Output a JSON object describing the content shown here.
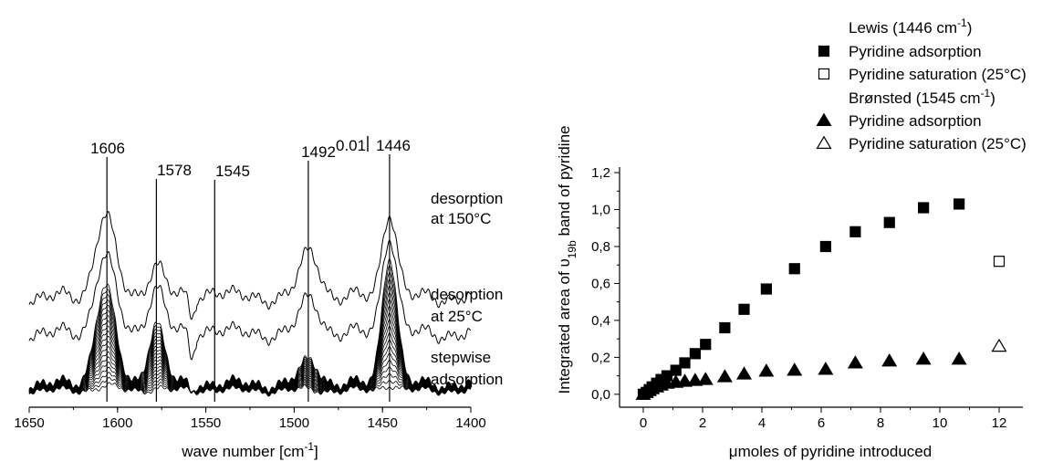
{
  "chart_data": [
    {
      "type": "line",
      "xlabel": "wave number [cm",
      "xlabel_sup": "-1",
      "xlabel_end": "]",
      "xlim": [
        1650,
        1400
      ],
      "x_ticks": [
        1650,
        1600,
        1550,
        1500,
        1450,
        1400
      ],
      "y_axis_shown": false,
      "scale_bar_label": "0.01",
      "peak_labels": [
        {
          "label": "1606",
          "x": 1606
        },
        {
          "label": "1578",
          "x": 1578
        },
        {
          "label": "1545",
          "x": 1545
        },
        {
          "label": "1492",
          "x": 1492
        },
        {
          "label": "1446",
          "x": 1446
        }
      ],
      "spectrum_labels": [
        {
          "lines": [
            "desorption",
            "at 150°C"
          ]
        },
        {
          "lines": [
            "desorption",
            "at 25°C"
          ]
        },
        {
          "lines": [
            "stepwise",
            "adsorption"
          ]
        }
      ],
      "series": [
        {
          "role": "desorption_150",
          "offset": 0.62,
          "amplitude": 1.0
        },
        {
          "role": "desorption_25",
          "offset": 0.38,
          "amplitude": 0.95
        },
        {
          "role": "stepwise_adsorption",
          "offset": 0.0,
          "steps": 20,
          "max_amplitude": 1.25
        }
      ]
    },
    {
      "type": "scatter",
      "ylabel": "Integrated area of υ",
      "ylabel_sub": "19b",
      "ylabel_end": " band of pyridine",
      "xlabel": "μmoles of pyridine introduced",
      "xlim": [
        -0.8,
        12.8
      ],
      "ylim": [
        -0.07,
        1.23
      ],
      "x_ticks": [
        0,
        2,
        4,
        6,
        8,
        10,
        12
      ],
      "y_ticks": [
        "0,0",
        "0,2",
        "0,4",
        "0,6",
        "0,8",
        "1,0",
        "1,2"
      ],
      "y_tick_values": [
        0.0,
        0.2,
        0.4,
        0.6,
        0.8,
        1.0,
        1.2
      ],
      "legend_placement": "top-right",
      "legend": [
        {
          "type": "header",
          "label": "Lewis (1446 cm",
          "sup": "-1",
          "end": ")"
        },
        {
          "type": "entry",
          "marker": "square-filled",
          "label": "Pyridine adsorption"
        },
        {
          "type": "entry",
          "marker": "square-open",
          "label": "Pyridine saturation (25°C)"
        },
        {
          "type": "header",
          "label": "Brønsted (1545 cm",
          "sup": "-1",
          "end": ")"
        },
        {
          "type": "entry",
          "marker": "triangle-filled",
          "label": "Pyridine adsorption"
        },
        {
          "type": "entry",
          "marker": "triangle-open",
          "label": "Pyridine saturation (25°C)"
        }
      ],
      "series": [
        {
          "name": "Lewis – Pyridine adsorption",
          "marker": "square-filled",
          "x": [
            0.0,
            0.1,
            0.2,
            0.3,
            0.45,
            0.6,
            0.8,
            1.1,
            1.4,
            1.75,
            2.1,
            2.75,
            3.4,
            4.15,
            5.1,
            6.15,
            7.15,
            8.3,
            9.45,
            10.65
          ],
          "y": [
            0.0,
            0.01,
            0.025,
            0.04,
            0.06,
            0.08,
            0.1,
            0.13,
            0.17,
            0.22,
            0.27,
            0.36,
            0.46,
            0.57,
            0.68,
            0.8,
            0.88,
            0.93,
            1.01,
            1.03
          ]
        },
        {
          "name": "Lewis – Pyridine saturation (25°C)",
          "marker": "square-open",
          "x": [
            12.0
          ],
          "y": [
            0.72
          ]
        },
        {
          "name": "Brønsted – Pyridine adsorption",
          "marker": "triangle-filled",
          "x": [
            0.0,
            0.1,
            0.2,
            0.3,
            0.45,
            0.6,
            0.8,
            1.1,
            1.4,
            1.75,
            2.1,
            2.75,
            3.4,
            4.15,
            5.1,
            6.15,
            7.15,
            8.3,
            9.45,
            10.65
          ],
          "y": [
            0.0,
            0.01,
            0.02,
            0.03,
            0.04,
            0.05,
            0.06,
            0.065,
            0.07,
            0.075,
            0.08,
            0.095,
            0.11,
            0.125,
            0.13,
            0.135,
            0.17,
            0.18,
            0.19,
            0.19
          ]
        },
        {
          "name": "Brønsted – Pyridine saturation (25°C)",
          "marker": "triangle-open",
          "x": [
            12.0
          ],
          "y": [
            0.26
          ]
        }
      ]
    }
  ]
}
